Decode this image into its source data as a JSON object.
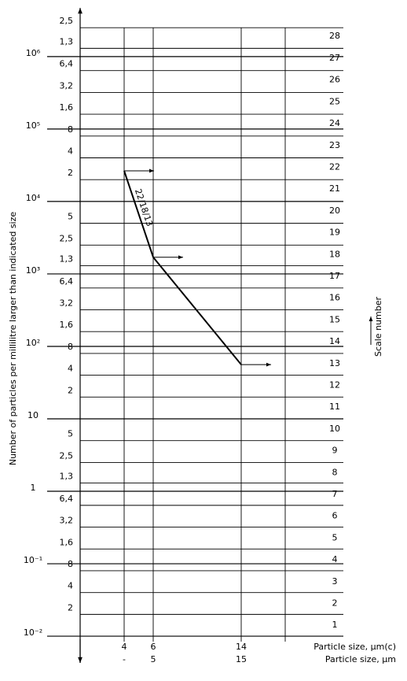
{
  "chart_data": {
    "type": "line",
    "log_y": true,
    "ylabel": "Number of particles per millilitre larger than indicated size",
    "xlabel": "Particle size, µm(c)",
    "xlabel2": "Particle size, µm",
    "y2_label": "Scale number",
    "annotation": "22/18/13",
    "categories": [
      "4",
      "6",
      "14",
      null
    ],
    "categories2": [
      "-",
      "5",
      "15",
      null
    ],
    "series": [
      {
        "name": "22/18/13",
        "color": "#000000",
        "values": [
          26500,
          1700,
          56,
          null
        ]
      }
    ],
    "ylim": [
      0.0045,
      4700000
    ],
    "yticks": [
      {
        "value": 2500000,
        "label": "2,5"
      },
      {
        "value": 1300000,
        "label": "1,3"
      },
      {
        "value": 1000000,
        "label": "10⁶"
      },
      {
        "value": 640000,
        "label": "6,4"
      },
      {
        "value": 320000,
        "label": "3,2"
      },
      {
        "value": 160000,
        "label": "1,6"
      },
      {
        "value": 100000,
        "label": "10⁵"
      },
      {
        "value": 80000,
        "label": "8"
      },
      {
        "value": 40000,
        "label": "4"
      },
      {
        "value": 20000,
        "label": "2"
      },
      {
        "value": 10000,
        "label": "10⁴"
      },
      {
        "value": 5000,
        "label": "5"
      },
      {
        "value": 2500,
        "label": "2,5"
      },
      {
        "value": 1300,
        "label": "1,3"
      },
      {
        "value": 1000,
        "label": "10³"
      },
      {
        "value": 640,
        "label": "6,4"
      },
      {
        "value": 320,
        "label": "3,2"
      },
      {
        "value": 160,
        "label": "1,6"
      },
      {
        "value": 100,
        "label": "10²"
      },
      {
        "value": 80,
        "label": "8"
      },
      {
        "value": 40,
        "label": "4"
      },
      {
        "value": 20,
        "label": "2"
      },
      10,
      {
        "value": 5,
        "label": "5"
      },
      {
        "value": 2.5,
        "label": "2,5"
      },
      {
        "value": 1.3,
        "label": "1,3"
      },
      1,
      {
        "value": 0.64,
        "label": "6,4"
      },
      {
        "value": 0.32,
        "label": "3,2"
      },
      {
        "value": 0.16,
        "label": "1,6"
      },
      {
        "value": 0.1,
        "label": "10⁻¹"
      },
      {
        "value": 0.08,
        "label": "8"
      },
      {
        "value": 0.04,
        "label": "4"
      },
      {
        "value": 0.02,
        "label": "2"
      },
      {
        "value": 0.01,
        "label": "10⁻²"
      }
    ],
    "scale_numbers": [
      1,
      2,
      3,
      4,
      5,
      6,
      7,
      8,
      9,
      10,
      11,
      12,
      13,
      14,
      15,
      16,
      17,
      18,
      19,
      20,
      21,
      22,
      23,
      24,
      25,
      26,
      27,
      28
    ]
  }
}
